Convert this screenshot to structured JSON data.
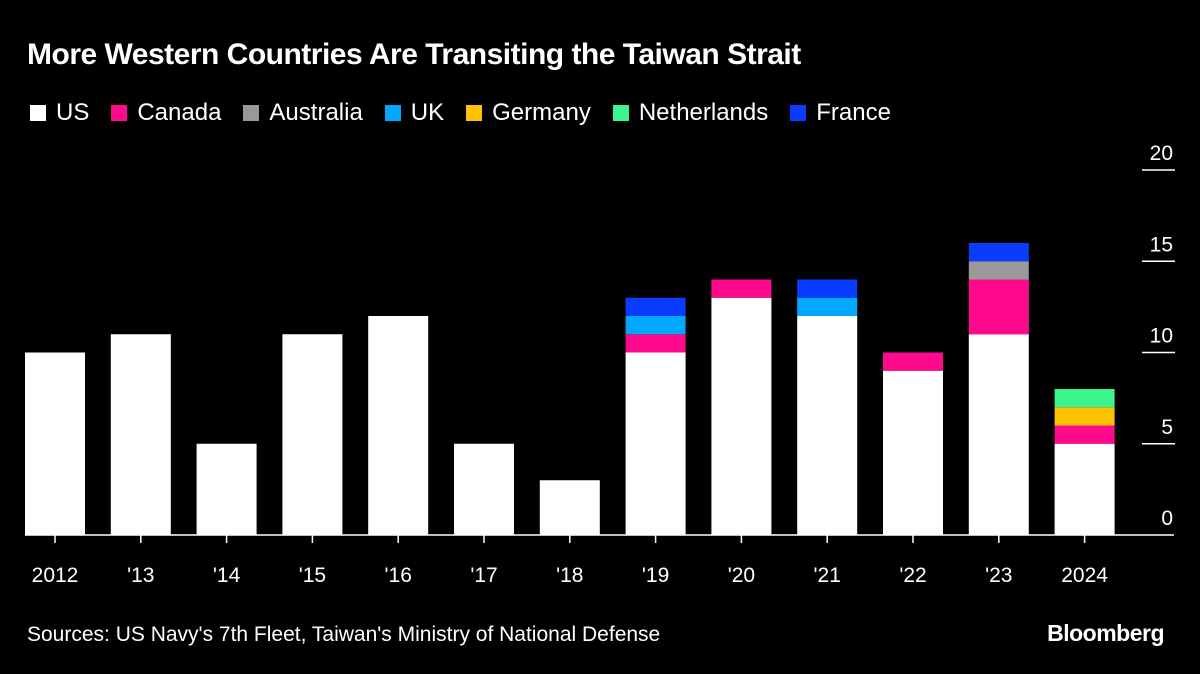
{
  "chart_data": {
    "type": "bar",
    "stacked": true,
    "title": "More Western Countries Are Transiting the Taiwan Strait",
    "categories": [
      "2012",
      "'13",
      "'14",
      "'15",
      "'16",
      "'17",
      "'18",
      "'19",
      "'20",
      "'21",
      "'22",
      "'23",
      "2024"
    ],
    "series": [
      {
        "name": "US",
        "color": "#ffffff",
        "values": [
          10,
          11,
          5,
          11,
          12,
          5,
          3,
          10,
          13,
          12,
          9,
          11,
          5
        ]
      },
      {
        "name": "Canada",
        "color": "#ff0a8c",
        "values": [
          0,
          0,
          0,
          0,
          0,
          0,
          0,
          1,
          1,
          0,
          1,
          3,
          1
        ]
      },
      {
        "name": "Australia",
        "color": "#999999",
        "values": [
          0,
          0,
          0,
          0,
          0,
          0,
          0,
          0,
          0,
          0,
          0,
          1,
          0
        ]
      },
      {
        "name": "UK",
        "color": "#00a8ff",
        "values": [
          0,
          0,
          0,
          0,
          0,
          0,
          0,
          1,
          0,
          1,
          0,
          0,
          0
        ]
      },
      {
        "name": "Germany",
        "color": "#ffc200",
        "values": [
          0,
          0,
          0,
          0,
          0,
          0,
          0,
          0,
          0,
          0,
          0,
          0,
          1
        ]
      },
      {
        "name": "Netherlands",
        "color": "#3cf58f",
        "values": [
          0,
          0,
          0,
          0,
          0,
          0,
          0,
          0,
          0,
          0,
          0,
          0,
          1
        ]
      },
      {
        "name": "France",
        "color": "#0a3cff",
        "values": [
          0,
          0,
          0,
          0,
          0,
          0,
          0,
          1,
          0,
          1,
          0,
          1,
          0
        ]
      }
    ],
    "ylim": [
      0,
      20
    ],
    "yticks": [
      0,
      5,
      10,
      15,
      20
    ],
    "y_axis_position": "right",
    "legend_placement": "top-left",
    "grid": false
  },
  "source": "Sources: US Navy's 7th Fleet, Taiwan's Ministry of National Defense",
  "logo": "Bloomberg"
}
